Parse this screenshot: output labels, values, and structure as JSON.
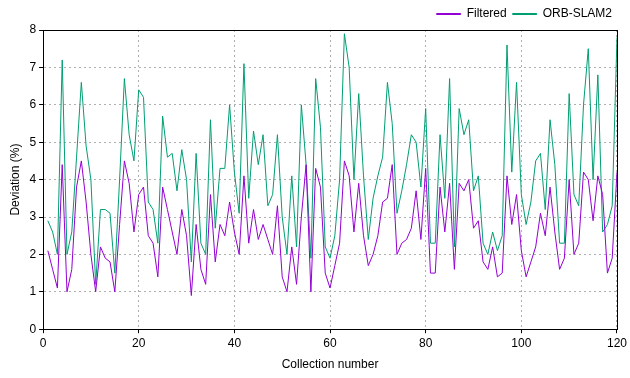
{
  "chart_data": {
    "type": "line",
    "x_label": "Collection number",
    "y_label": "Deviation (%)",
    "x": [
      1,
      2,
      3,
      4,
      5,
      6,
      7,
      8,
      9,
      10,
      11,
      12,
      13,
      14,
      15,
      16,
      17,
      18,
      19,
      20,
      21,
      22,
      23,
      24,
      25,
      26,
      27,
      28,
      29,
      30,
      31,
      32,
      33,
      34,
      35,
      36,
      37,
      38,
      39,
      40,
      41,
      42,
      43,
      44,
      45,
      46,
      47,
      48,
      49,
      50,
      51,
      52,
      53,
      54,
      55,
      56,
      57,
      58,
      59,
      60,
      61,
      62,
      63,
      64,
      65,
      66,
      67,
      68,
      69,
      70,
      71,
      72,
      73,
      74,
      75,
      76,
      77,
      78,
      79,
      80,
      81,
      82,
      83,
      84,
      85,
      86,
      87,
      88,
      89,
      90,
      91,
      92,
      93,
      94,
      95,
      96,
      97,
      98,
      99,
      100,
      101,
      102,
      103,
      104,
      105,
      106,
      107,
      108,
      109,
      110,
      111,
      112,
      113,
      114,
      115,
      116,
      117,
      118,
      119,
      120
    ],
    "series": [
      {
        "name": "Filtered",
        "color": "#9400d3",
        "values": [
          2.1,
          1.6,
          1.1,
          4.4,
          1.0,
          1.6,
          3.8,
          4.5,
          3.4,
          2.0,
          1.0,
          2.2,
          1.9,
          1.8,
          1.0,
          2.8,
          4.5,
          3.9,
          2.6,
          3.6,
          3.8,
          2.5,
          2.3,
          1.4,
          3.8,
          3.2,
          2.6,
          2.0,
          3.2,
          2.5,
          0.9,
          2.8,
          1.6,
          1.2,
          3.6,
          1.8,
          2.8,
          2.5,
          3.4,
          2.6,
          2.0,
          4.1,
          2.3,
          3.2,
          2.4,
          2.8,
          2.4,
          2.0,
          3.3,
          1.4,
          1.0,
          2.2,
          1.2,
          3.0,
          4.4,
          1.0,
          4.3,
          3.8,
          1.5,
          1.1,
          1.7,
          2.3,
          4.5,
          4.1,
          2.6,
          3.9,
          2.5,
          1.7,
          2.0,
          2.5,
          3.4,
          3.5,
          4.4,
          2.0,
          2.3,
          2.4,
          2.7,
          3.7,
          2.4,
          4.3,
          1.5,
          1.5,
          3.8,
          2.6,
          3.9,
          1.6,
          3.9,
          3.7,
          4.0,
          2.7,
          2.9,
          1.8,
          1.6,
          2.2,
          1.4,
          1.5,
          4.1,
          2.8,
          3.6,
          2.1,
          1.4,
          1.8,
          2.2,
          3.1,
          2.5,
          3.8,
          2.6,
          1.6,
          1.9,
          4.0,
          2.0,
          2.3,
          4.2,
          4.0,
          2.9,
          4.1,
          3.6,
          1.5,
          1.9,
          4.2
        ]
      },
      {
        "name": "ORB-SLAM2",
        "color": "#009e73",
        "values": [
          2.9,
          2.6,
          2.0,
          7.2,
          2.0,
          2.6,
          4.6,
          6.6,
          4.9,
          4.0,
          1.2,
          3.2,
          3.2,
          3.1,
          1.5,
          4.0,
          6.7,
          5.2,
          4.5,
          6.4,
          6.2,
          3.4,
          3.2,
          2.3,
          5.7,
          4.6,
          4.7,
          3.7,
          4.8,
          4.0,
          1.8,
          4.7,
          2.3,
          2.0,
          5.6,
          2.7,
          4.3,
          4.3,
          6.0,
          4.2,
          3.1,
          7.1,
          3.5,
          5.3,
          4.4,
          5.2,
          3.3,
          3.6,
          5.2,
          3.0,
          2.0,
          4.1,
          2.2,
          6.0,
          4.4,
          1.9,
          6.7,
          5.4,
          2.2,
          1.9,
          2.5,
          4.0,
          7.9,
          7.0,
          4.0,
          6.3,
          4.1,
          2.4,
          3.5,
          4.1,
          4.6,
          6.6,
          5.5,
          3.1,
          3.7,
          4.4,
          5.2,
          5.0,
          3.8,
          5.9,
          2.3,
          2.3,
          5.2,
          3.5,
          6.7,
          2.2,
          5.9,
          5.2,
          5.6,
          3.7,
          4.1,
          2.3,
          2.0,
          2.6,
          2.1,
          2.5,
          7.6,
          4.2,
          6.6,
          3.6,
          2.8,
          3.4,
          4.5,
          4.7,
          3.2,
          5.6,
          4.4,
          2.3,
          2.3,
          6.3,
          3.6,
          3.3,
          6.0,
          7.5,
          4.0,
          6.8,
          2.6,
          2.8,
          3.3,
          7.8
        ]
      }
    ],
    "xlim": [
      0,
      120
    ],
    "ylim": [
      0,
      8
    ],
    "xticks": [
      0,
      20,
      40,
      60,
      80,
      100,
      120
    ],
    "yticks": [
      0,
      1,
      2,
      3,
      4,
      5,
      6,
      7,
      8
    ],
    "grid": true,
    "legend": "top-right"
  }
}
